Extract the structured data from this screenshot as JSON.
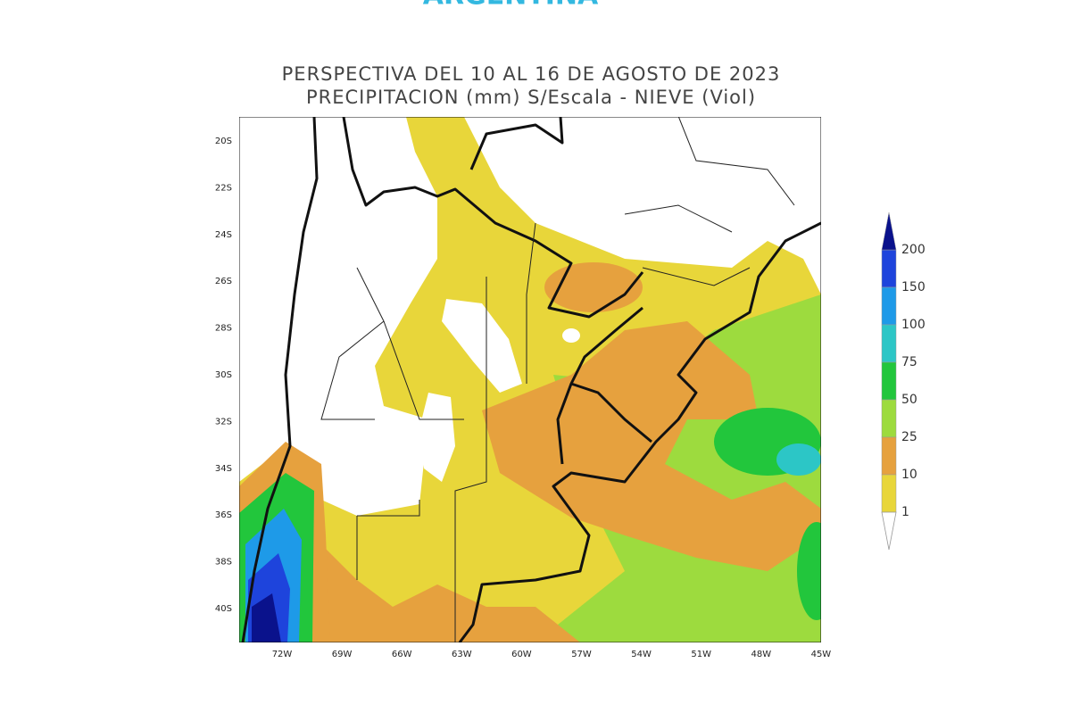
{
  "header": {
    "brand": "ARGENTINA"
  },
  "map": {
    "title": "PERSPECTIVA DEL 10 AL 16 DE AGOSTO DE 2023",
    "subtitle": "PRECIPITACION (mm) S/Escala - NIEVE (Viol)",
    "lat_labels": [
      "20S",
      "22S",
      "24S",
      "26S",
      "28S",
      "30S",
      "32S",
      "34S",
      "36S",
      "38S",
      "40S"
    ],
    "lon_labels": [
      "72W",
      "69W",
      "66W",
      "63W",
      "60W",
      "57W",
      "54W",
      "51W",
      "48W",
      "45W"
    ]
  },
  "legend": {
    "levels": [
      1,
      10,
      25,
      50,
      75,
      100,
      150,
      200
    ],
    "colors": [
      "#ffffff",
      "#e8d63a",
      "#e6a13e",
      "#9ddb3e",
      "#22c63c",
      "#2cc6c6",
      "#1e9ae8",
      "#1e44dc",
      "#0a128c"
    ]
  }
}
